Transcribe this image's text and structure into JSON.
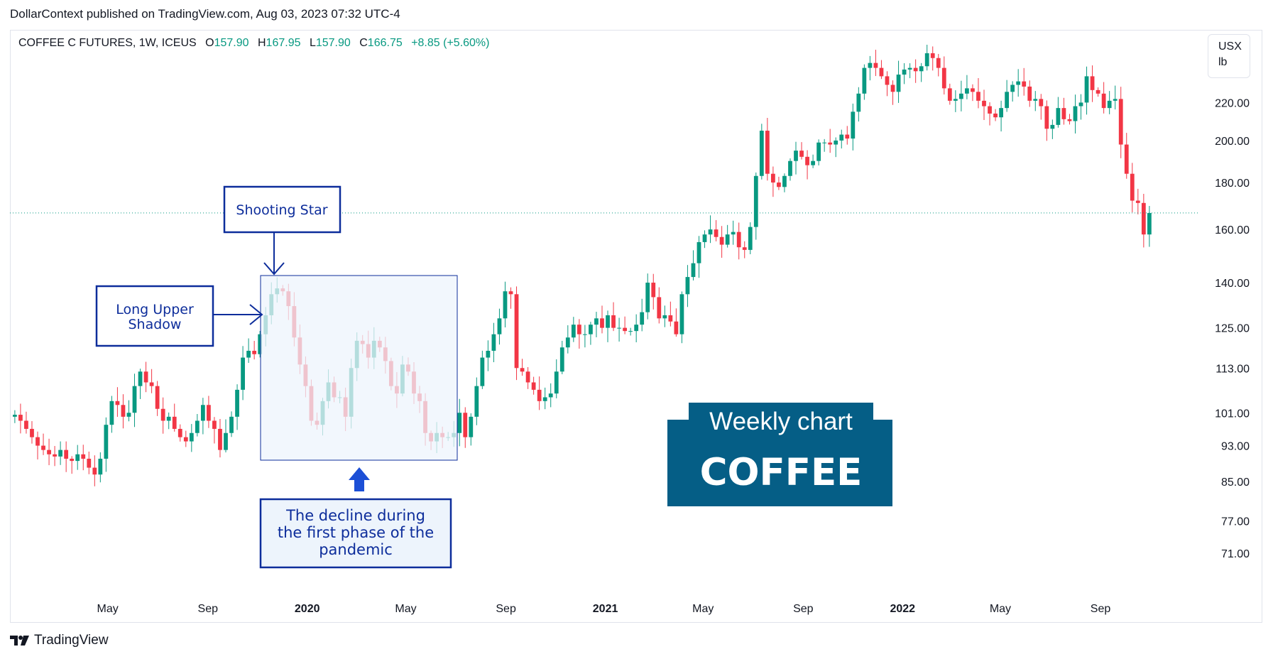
{
  "publisher": "DollarContext published on TradingView.com, Aug 03, 2023 07:32 UTC-4",
  "legend": {
    "symbol": "COFFEE C FUTURES, 1W, ICEUS",
    "o_label": "O",
    "o_value": "157.90",
    "h_label": "H",
    "h_value": "167.95",
    "l_label": "L",
    "l_value": "157.90",
    "c_label": "C",
    "c_value": "166.75",
    "change": "+8.85 (+5.60%)"
  },
  "unit": {
    "currency": "USX",
    "unit": "lb"
  },
  "footer": {
    "brand": "TradingView"
  },
  "colors": {
    "up": "#089981",
    "down": "#f23645",
    "annotation": "#0d2d9b",
    "badge": "#055e86",
    "box_fill": "#edf4fc"
  },
  "annotations": {
    "shooting_star": "Shooting Star",
    "long_upper_shadow_1": "Long Upper",
    "long_upper_shadow_2": "Shadow",
    "decline_1": "The decline during",
    "decline_2": "the first phase of the",
    "decline_3": "pandemic",
    "badge_title": "Weekly chart",
    "badge_symbol": "COFFEE"
  },
  "chart_data": {
    "type": "candlestick",
    "interval": "1W",
    "y_scale": "log",
    "ylim": [
      66,
      265
    ],
    "y_ticks": [
      "220.00",
      "200.00",
      "180.00",
      "160.00",
      "140.00",
      "125.00",
      "113.00",
      "101.00",
      "93.00",
      "85.00",
      "77.00",
      "71.00"
    ],
    "x_ticks": [
      {
        "label": "May",
        "date": "2019-05-01",
        "bold": false
      },
      {
        "label": "Sep",
        "date": "2019-09-01",
        "bold": false
      },
      {
        "label": "2020",
        "date": "2020-01-01",
        "bold": true
      },
      {
        "label": "May",
        "date": "2020-05-01",
        "bold": false
      },
      {
        "label": "Sep",
        "date": "2020-09-01",
        "bold": false
      },
      {
        "label": "2021",
        "date": "2021-01-01",
        "bold": true
      },
      {
        "label": "May",
        "date": "2021-05-01",
        "bold": false
      },
      {
        "label": "Sep",
        "date": "2021-09-01",
        "bold": false
      },
      {
        "label": "2022",
        "date": "2022-01-01",
        "bold": true
      },
      {
        "label": "May",
        "date": "2022-05-01",
        "bold": false
      },
      {
        "label": "Sep",
        "date": "2022-09-01",
        "bold": false
      }
    ],
    "first_week": "2019-01-07",
    "last_close_line": 166.75,
    "closes": [
      100.5,
      99,
      97,
      95,
      93,
      92,
      91,
      90.5,
      92,
      90,
      89.5,
      91,
      90,
      88,
      86.5,
      90,
      98,
      104,
      103,
      100,
      101,
      108,
      112,
      109,
      108,
      102,
      99,
      100,
      97,
      95,
      94,
      96,
      99,
      103,
      99,
      97,
      92,
      96,
      100,
      107,
      116,
      118,
      117,
      123,
      129,
      136,
      138,
      137,
      132,
      122,
      114,
      108,
      99,
      98,
      104,
      109,
      105,
      105,
      100,
      113,
      121,
      120,
      116,
      121,
      119,
      115,
      108,
      106,
      114,
      112,
      106,
      104,
      96,
      94,
      96,
      95,
      95,
      96,
      101,
      95,
      100,
      108,
      116,
      118,
      123,
      128,
      137,
      136,
      113,
      112,
      109,
      107,
      104,
      105,
      106,
      112,
      119,
      122,
      126,
      123,
      123,
      126,
      128,
      125,
      129,
      125,
      125,
      124,
      124,
      126,
      130,
      140,
      135,
      128,
      129,
      127,
      123,
      136,
      142,
      147,
      155,
      158,
      160,
      157,
      154,
      158,
      159,
      153,
      152,
      161,
      183,
      205,
      184,
      180,
      178,
      183,
      190,
      195,
      192,
      188,
      190,
      199,
      199,
      198,
      200,
      203,
      201,
      215,
      225,
      240,
      243,
      240,
      235,
      230,
      226,
      236,
      239,
      240,
      238,
      241,
      249,
      246,
      240,
      228,
      221,
      222,
      225,
      228,
      226,
      221,
      218,
      214,
      212,
      217,
      226,
      230,
      232,
      229,
      221,
      222,
      218,
      206,
      208,
      217,
      211,
      210,
      218,
      220,
      235,
      227,
      225,
      217,
      221,
      222,
      198,
      184,
      172,
      171,
      158,
      166.75
    ]
  }
}
